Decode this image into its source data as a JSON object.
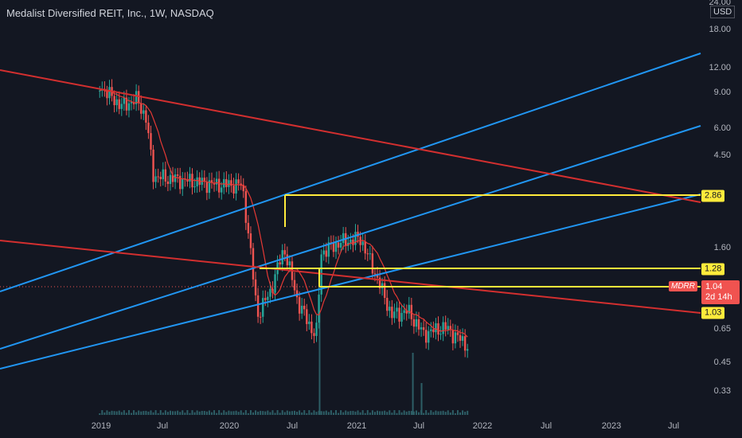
{
  "header": {
    "title": "Medalist Diversified REIT, Inc., 1W, NASDAQ"
  },
  "price_axis": {
    "currency": "USD",
    "top_partial_label": "24.00",
    "ticks": [
      "18.00",
      "12.00",
      "9.00",
      "6.00",
      "4.50",
      "1.60",
      "0.65",
      "0.45",
      "0.33"
    ]
  },
  "time_axis": {
    "ticks": [
      "2019",
      "Jul",
      "2020",
      "Jul",
      "2021",
      "Jul",
      "2022",
      "Jul",
      "2023",
      "Jul"
    ]
  },
  "tags": {
    "level_upper": "2.86",
    "level_mid": "1.28",
    "level_low": "1.03",
    "symbol": "MDRR",
    "last_price": "1.04",
    "countdown": "2d 14h"
  },
  "colors": {
    "background": "#131722",
    "candle_up": "#26a69a",
    "candle_down": "#ef5350",
    "trendline_blue": "#2196f3",
    "trendline_red": "#d32f2f",
    "level_yellow": "#ffeb3b",
    "moving_average": "#e53935",
    "volume": "#2d5e66"
  },
  "chart_data": {
    "type": "candlestick",
    "symbol": "MDRR",
    "interval": "1W",
    "y_scale": "log",
    "ylim": [
      0.28,
      24
    ],
    "x_range": [
      "2018-12-15",
      "2023-09-15"
    ],
    "grid": false,
    "horizontal_levels": [
      2.86,
      1.28,
      1.03
    ],
    "last_price": 1.04,
    "approx_weekly_close": [
      {
        "date": "2018-12-28",
        "close": 9.5
      },
      {
        "date": "2019-03-01",
        "close": 8.0
      },
      {
        "date": "2019-04-15",
        "close": 8.5
      },
      {
        "date": "2019-05-10",
        "close": 7.2
      },
      {
        "date": "2019-06-01",
        "close": 4.4
      },
      {
        "date": "2019-08-01",
        "close": 4.3
      },
      {
        "date": "2019-10-01",
        "close": 4.2
      },
      {
        "date": "2019-12-01",
        "close": 4.1
      },
      {
        "date": "2020-02-10",
        "close": 4.1
      },
      {
        "date": "2020-03-01",
        "close": 2.6
      },
      {
        "date": "2020-03-25",
        "close": 1.35
      },
      {
        "date": "2020-05-01",
        "close": 1.65
      },
      {
        "date": "2020-06-10",
        "close": 2.4
      },
      {
        "date": "2020-07-20",
        "close": 1.5
      },
      {
        "date": "2020-09-10",
        "close": 1.12
      },
      {
        "date": "2020-09-25",
        "close": 2.3
      },
      {
        "date": "2020-11-15",
        "close": 2.5
      },
      {
        "date": "2021-01-15",
        "close": 2.6
      },
      {
        "date": "2021-03-01",
        "close": 1.9
      },
      {
        "date": "2021-04-15",
        "close": 1.35
      },
      {
        "date": "2021-06-01",
        "close": 1.4
      },
      {
        "date": "2021-07-15",
        "close": 1.15
      },
      {
        "date": "2021-09-15",
        "close": 1.22
      },
      {
        "date": "2021-11-20",
        "close": 1.04
      }
    ]
  }
}
